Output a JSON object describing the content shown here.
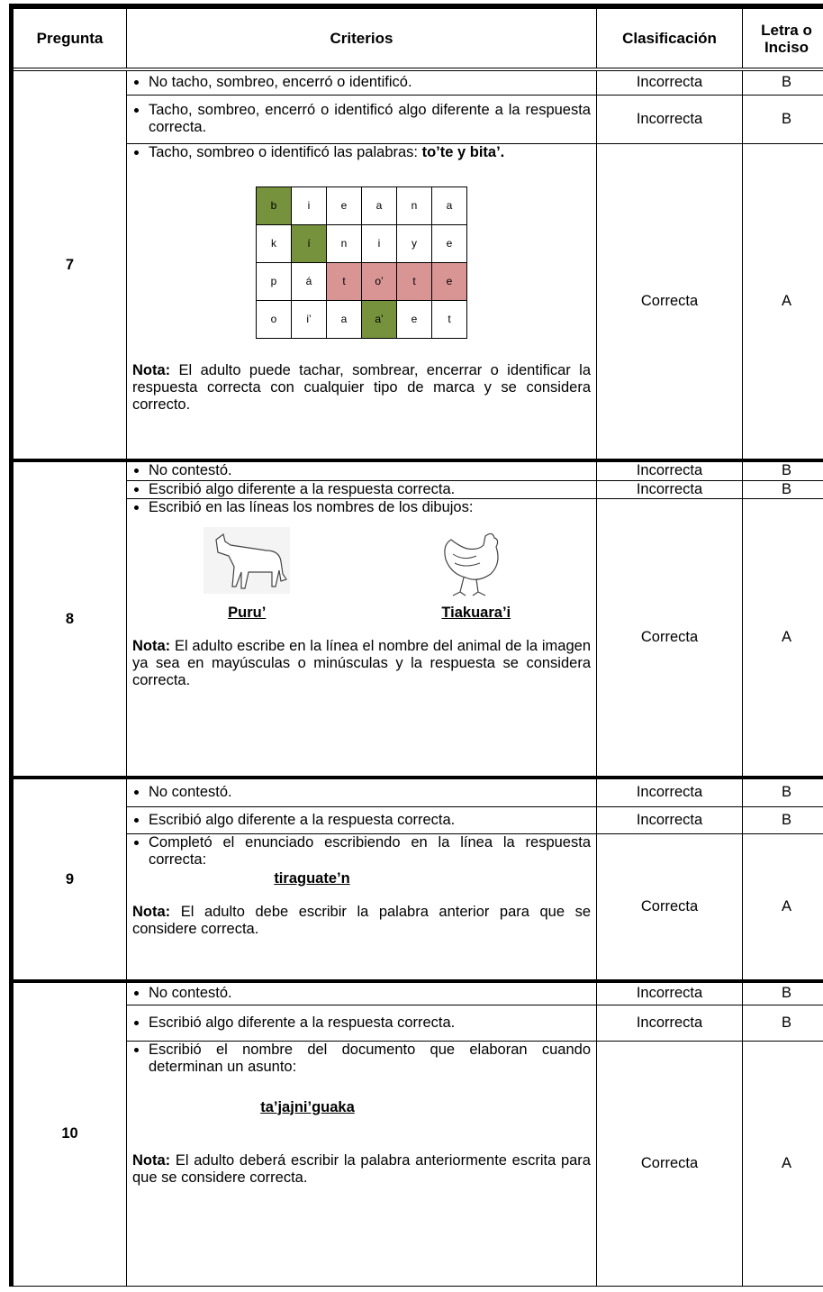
{
  "header": [
    "Pregunta",
    "Criterios",
    "Clasificación",
    "Letra o Inciso"
  ],
  "questions": [
    {
      "number": "7",
      "rows": [
        {
          "criterion": "No tacho, sombreo, encerró o identificó.",
          "classification": "Incorrecta",
          "letter": "B"
        },
        {
          "criterion": "Tacho, sombreo, encerró o identificó algo diferente a la respuesta correcta.",
          "classification": "Incorrecta",
          "letter": "B"
        },
        {
          "criterion": "Tacho, sombreo o identificó las palabras:",
          "criterion_bold": "to’te y bita’.",
          "grid": [
            [
              {
                "letter": "b",
                "color": "#76923c"
              },
              "i",
              "e",
              "a",
              "n",
              "a"
            ],
            [
              "k",
              {
                "letter": "í",
                "color": "#76923c"
              },
              "n",
              "i",
              "y",
              "e"
            ],
            [
              "p",
              "á",
              {
                "letter": "t",
                "color": "#d99594"
              },
              {
                "letter": "o’",
                "color": "#d99594"
              },
              {
                "letter": "t",
                "color": "#d99594"
              },
              {
                "letter": "e",
                "color": "#d99594"
              }
            ],
            [
              "o",
              "i’",
              "a",
              {
                "letter": "a’",
                "color": "#76923c"
              },
              "e",
              "t"
            ]
          ],
          "note_label": "Nota:",
          "note": "El adulto puede tachar, sombrear, encerrar o identificar la respuesta correcta con cualquier tipo de marca y se considera correcto.",
          "classification": "Correcta",
          "letter": "A"
        }
      ]
    },
    {
      "number": "8",
      "rows": [
        {
          "criterion": "No contestó.",
          "classification": "Incorrecta",
          "letter": "B"
        },
        {
          "criterion": "Escribió algo diferente a la respuesta correcta.",
          "classification": "Incorrecta",
          "letter": "B"
        },
        {
          "criterion": "Escribió en las líneas los nombres de los dibujos:",
          "pictures": [
            "Puru’",
            "Tiakuara’i"
          ],
          "note_label": "Nota:",
          "note": "El adulto escribe en la línea el nombre del animal de la imagen ya sea en mayúsculas o minúsculas y la respuesta se considera correcta.",
          "classification": "Correcta",
          "letter": "A"
        }
      ]
    },
    {
      "number": "9",
      "rows": [
        {
          "criterion": "No contestó.",
          "classification": "Incorrecta",
          "letter": "B"
        },
        {
          "criterion": "Escribió algo diferente a la respuesta correcta.",
          "classification": "Incorrecta",
          "letter": "B"
        },
        {
          "criterion": "Completó el enunciado escribiendo en la línea la respuesta correcta:",
          "answer": "tiraguate’n",
          "note_label": "Nota:",
          "note": "El adulto debe escribir la palabra anterior para que se considere correcta.",
          "classification": "Correcta",
          "letter": "A"
        }
      ]
    },
    {
      "number": "10",
      "rows": [
        {
          "criterion": "No contestó.",
          "classification": "Incorrecta",
          "letter": "B"
        },
        {
          "criterion": "Escribió algo diferente a la respuesta correcta.",
          "classification": "Incorrecta",
          "letter": "B"
        },
        {
          "criterion": "Escribió el nombre del documento que elaboran cuando determinan un asunto:",
          "answer": "ta’jajni’guaka",
          "note_label": "Nota:",
          "note": "El adulto deberá escribir la palabra anteriormente escrita para que se considere correcta.",
          "classification": "Correcta",
          "letter": "A"
        }
      ]
    }
  ]
}
